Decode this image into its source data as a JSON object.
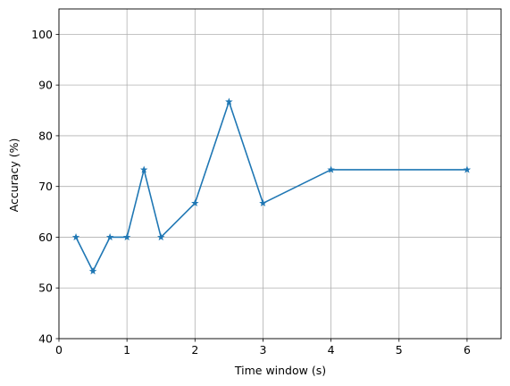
{
  "chart_data": {
    "type": "line",
    "title": "",
    "xlabel": "Time window (s)",
    "ylabel": "Accuracy (%)",
    "xlim": [
      0,
      6.5
    ],
    "ylim": [
      40,
      105
    ],
    "x_ticks": [
      0,
      1,
      2,
      3,
      4,
      5,
      6
    ],
    "y_ticks": [
      40,
      50,
      60,
      70,
      80,
      90,
      100
    ],
    "grid": true,
    "legend": "none",
    "series": [
      {
        "color": "#1f77b4",
        "marker": "star",
        "x": [
          0.25,
          0.5,
          0.75,
          1.0,
          1.25,
          1.5,
          2.0,
          2.5,
          3.0,
          4.0,
          6.0
        ],
        "y": [
          60.0,
          53.3,
          60.0,
          60.0,
          73.3,
          60.0,
          66.7,
          86.7,
          66.7,
          73.3,
          73.3
        ]
      }
    ]
  }
}
